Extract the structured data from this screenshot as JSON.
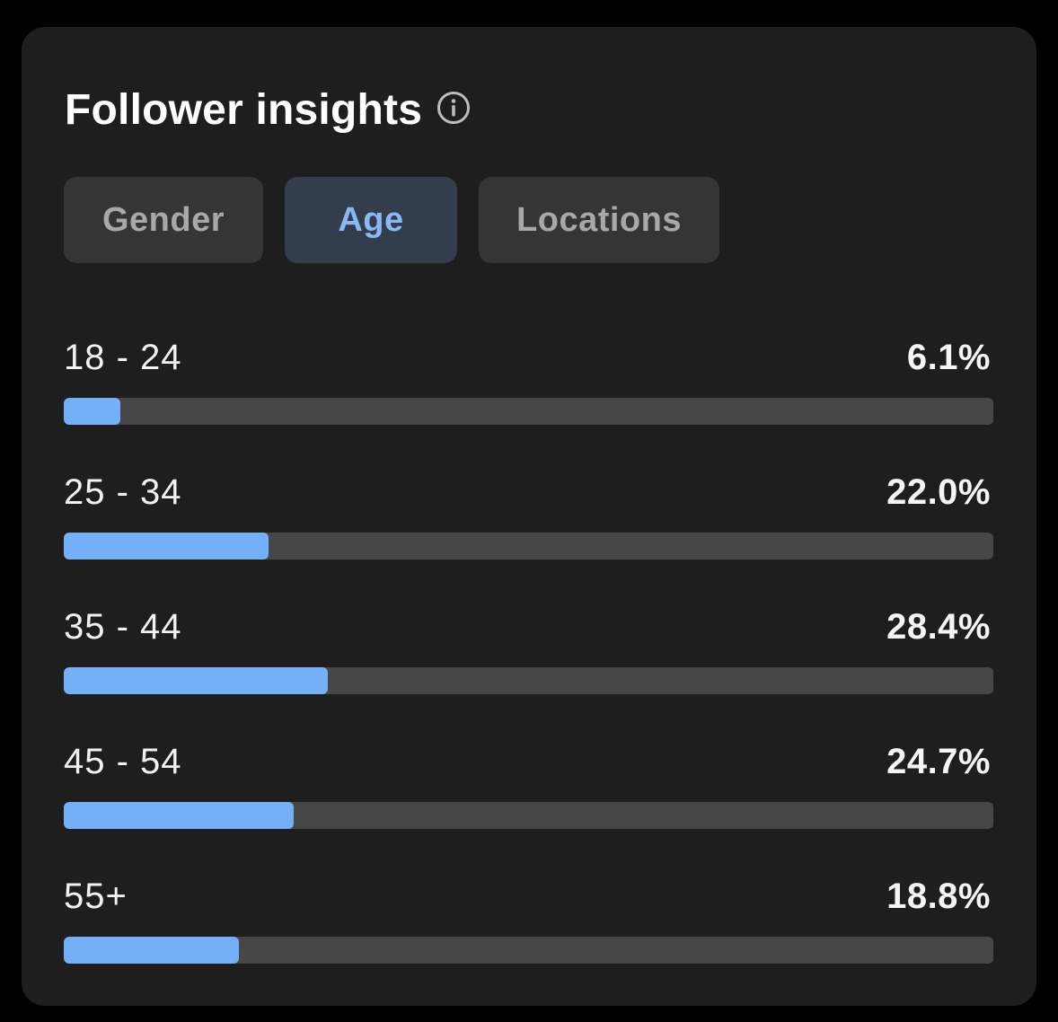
{
  "card": {
    "title": "Follower insights",
    "info_icon": "info-circle-icon"
  },
  "tabs": [
    {
      "label": "Gender",
      "active": false
    },
    {
      "label": "Age",
      "active": true
    },
    {
      "label": "Locations",
      "active": false
    }
  ],
  "colors": {
    "accent": "#74b0f8",
    "track": "#474747",
    "card_bg": "#1e1e1e",
    "active_tab_bg": "#343d4b",
    "active_tab_text": "#8ab8f5"
  },
  "age_distribution": [
    {
      "label": "18 - 24",
      "value_text": "6.1%",
      "percent": 6.1
    },
    {
      "label": "25 - 34",
      "value_text": "22.0%",
      "percent": 22.0
    },
    {
      "label": "35 - 44",
      "value_text": "28.4%",
      "percent": 28.4
    },
    {
      "label": "45 - 54",
      "value_text": "24.7%",
      "percent": 24.7
    },
    {
      "label": "55+",
      "value_text": "18.8%",
      "percent": 18.8
    }
  ]
}
